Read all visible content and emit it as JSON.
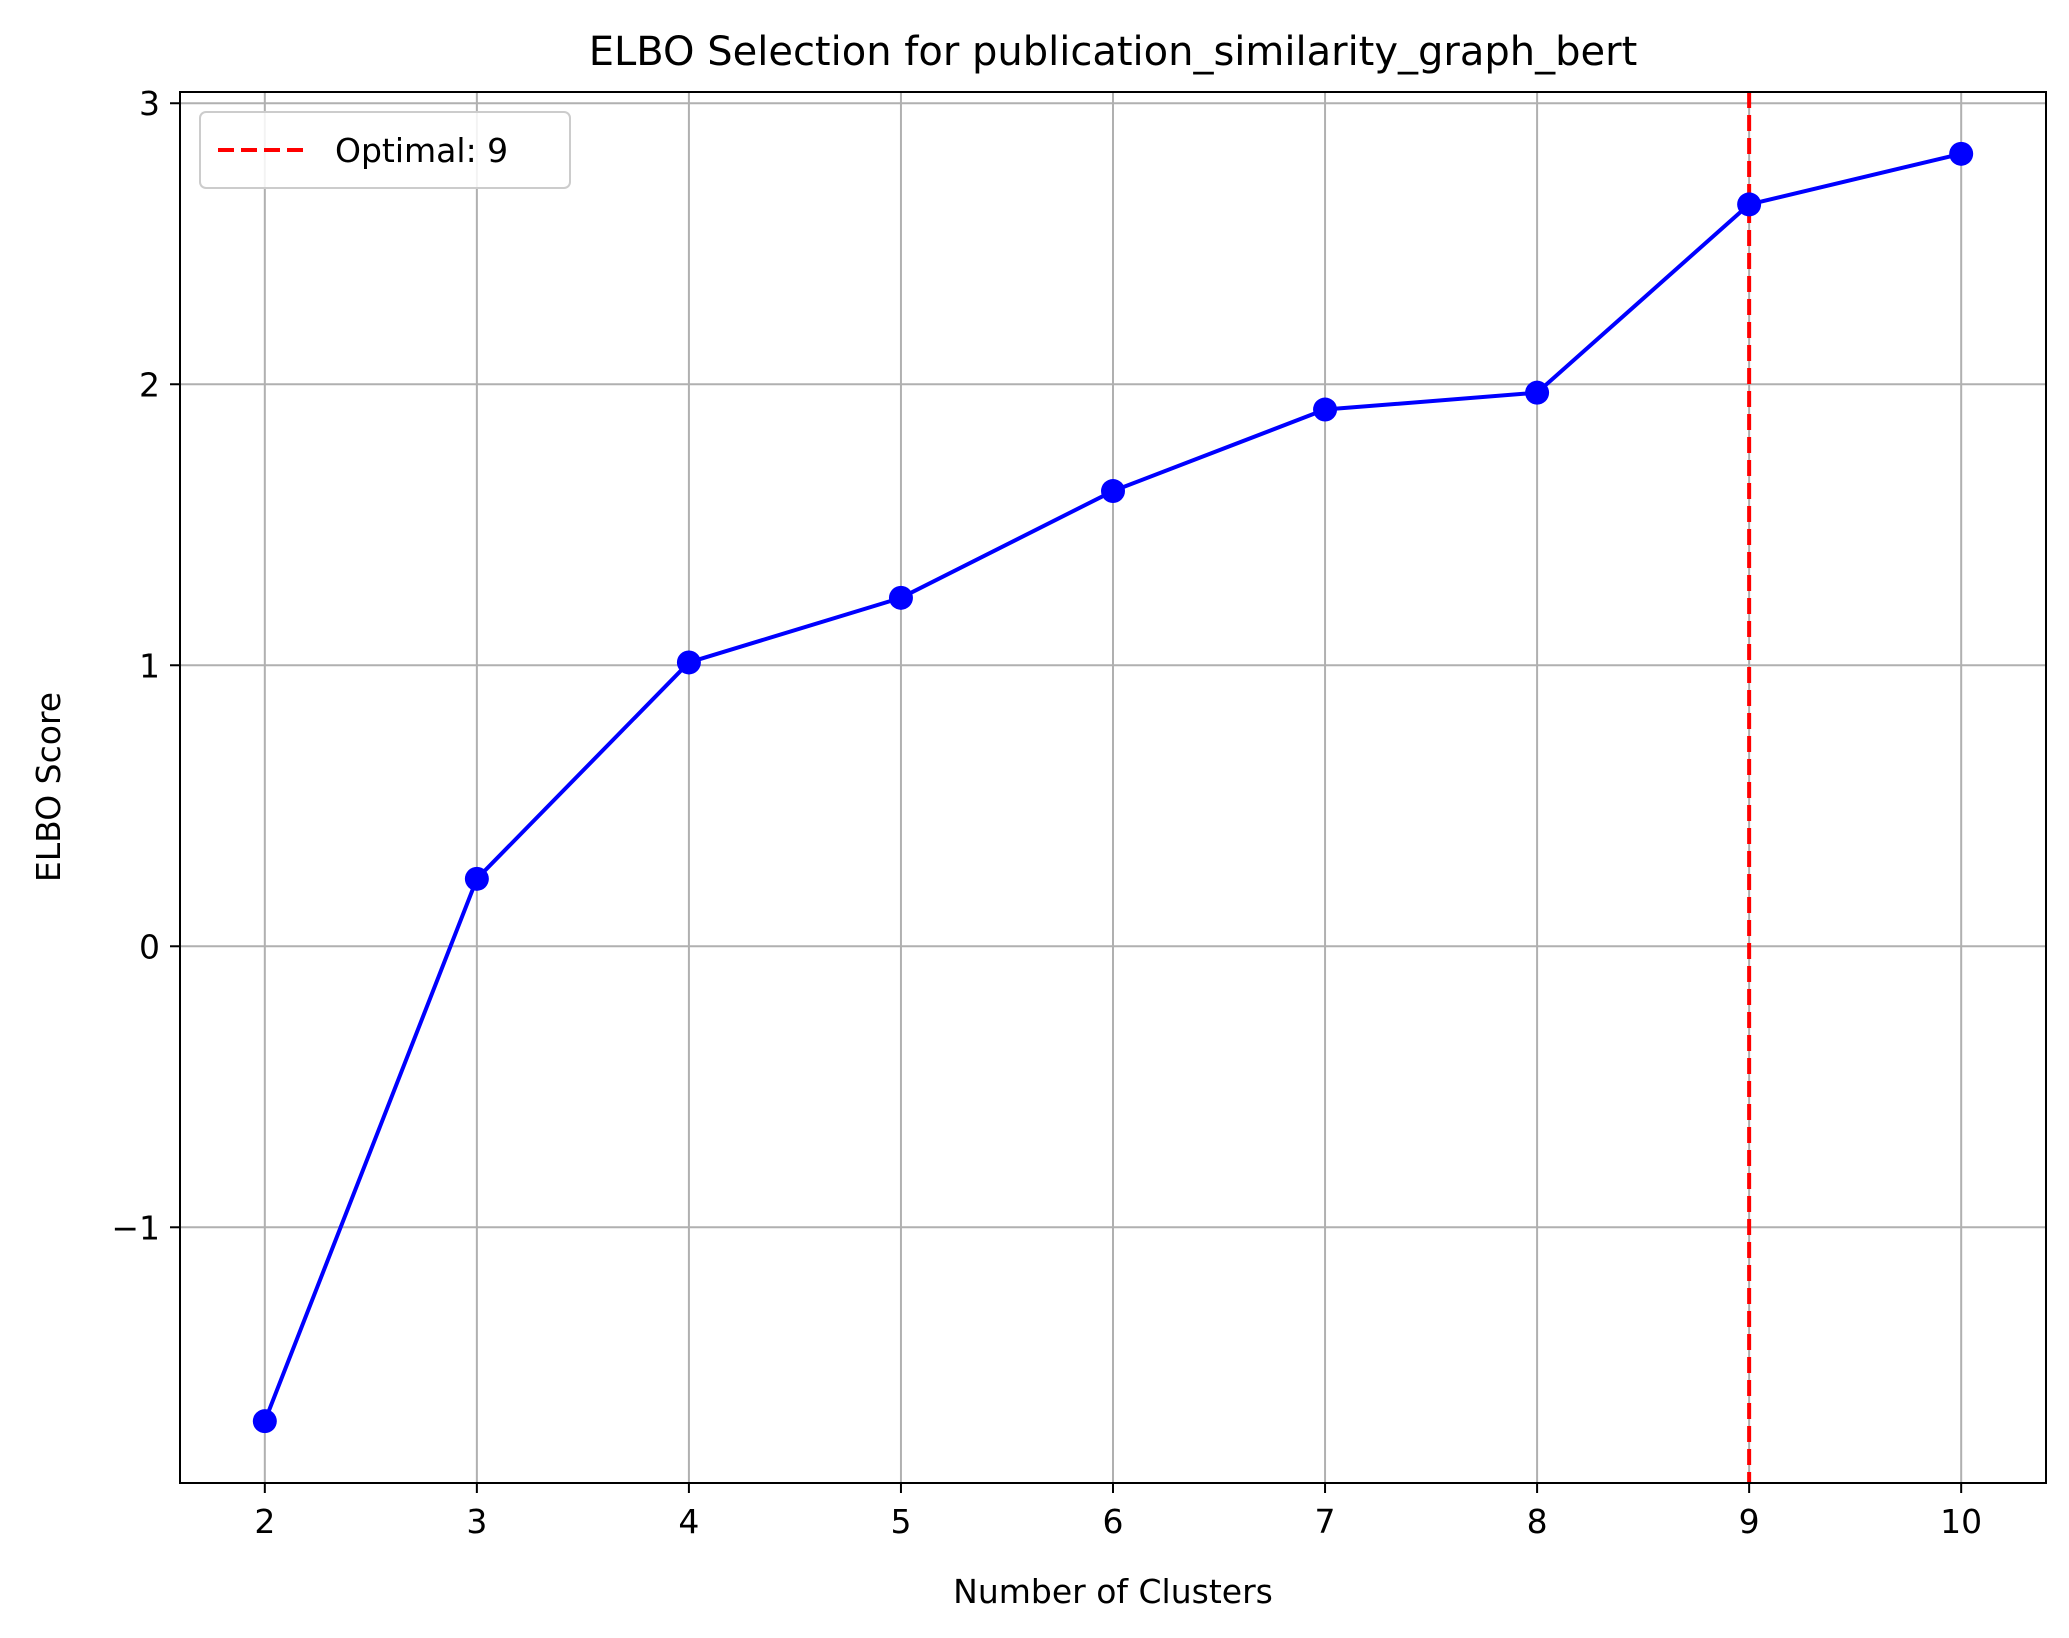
{
  "chart_data": {
    "type": "line",
    "title": "ELBO Selection for publication_similarity_graph_bert",
    "xlabel": "Number of Clusters",
    "ylabel": "ELBO Score",
    "xlim": [
      1.6,
      10.4
    ],
    "ylim": [
      -1.91,
      3.04
    ],
    "xticks": [
      2,
      3,
      4,
      5,
      6,
      7,
      8,
      9,
      10
    ],
    "yticks": [
      -1,
      0,
      1,
      2,
      3
    ],
    "ytick_labels": [
      "−1",
      "0",
      "1",
      "2",
      "3"
    ],
    "grid": true,
    "legend_position": "top-left",
    "series": [
      {
        "color": "#0000ff",
        "marker": "circle",
        "x": [
          2,
          3,
          4,
          5,
          6,
          7,
          8,
          9,
          10
        ],
        "y": [
          -1.69,
          0.24,
          1.01,
          1.24,
          1.62,
          1.91,
          1.97,
          2.64,
          2.82
        ]
      }
    ],
    "vline": {
      "x": 9,
      "label": "Optimal: 9",
      "color": "#ff0000",
      "style": "dashed"
    }
  }
}
